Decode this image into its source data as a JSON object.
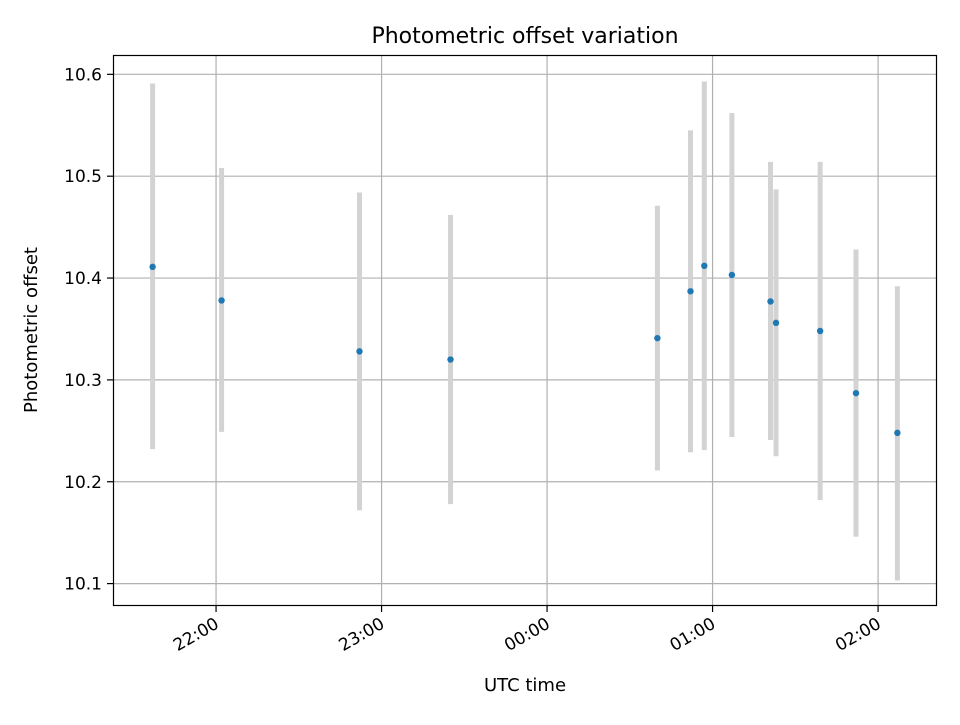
{
  "chart_data": {
    "type": "scatter",
    "title": "Photometric offset variation",
    "xlabel": "UTC time",
    "ylabel": "Photometric offset",
    "x_tick_labels": [
      "22:00",
      "23:00",
      "00:00",
      "01:00",
      "02:00"
    ],
    "x_ticks": [
      "22:00",
      "23:00",
      "00:00",
      "01:00",
      "02:00"
    ],
    "x_range": [
      "21:23",
      "02:21"
    ],
    "y_ticks": [
      10.1,
      10.2,
      10.3,
      10.4,
      10.5,
      10.6
    ],
    "ylim": [
      10.079,
      10.618
    ],
    "grid": true,
    "error_bar_color": "#d3d3d3",
    "point_color": "#1f77b4",
    "series": [
      {
        "points": [
          {
            "x": "21:37",
            "y": 10.411,
            "y_low": 10.232,
            "y_high": 10.591
          },
          {
            "x": "22:02",
            "y": 10.378,
            "y_low": 10.249,
            "y_high": 10.508
          },
          {
            "x": "22:52",
            "y": 10.328,
            "y_low": 10.172,
            "y_high": 10.484
          },
          {
            "x": "23:25",
            "y": 10.32,
            "y_low": 10.178,
            "y_high": 10.462
          },
          {
            "x": "00:40",
            "y": 10.341,
            "y_low": 10.211,
            "y_high": 10.471
          },
          {
            "x": "00:52",
            "y": 10.387,
            "y_low": 10.229,
            "y_high": 10.545
          },
          {
            "x": "00:57",
            "y": 10.412,
            "y_low": 10.231,
            "y_high": 10.593
          },
          {
            "x": "01:07",
            "y": 10.403,
            "y_low": 10.244,
            "y_high": 10.562
          },
          {
            "x": "01:21",
            "y": 10.377,
            "y_low": 10.241,
            "y_high": 10.514
          },
          {
            "x": "01:23",
            "y": 10.356,
            "y_low": 10.225,
            "y_high": 10.487
          },
          {
            "x": "01:39",
            "y": 10.348,
            "y_low": 10.182,
            "y_high": 10.514
          },
          {
            "x": "01:52",
            "y": 10.287,
            "y_low": 10.146,
            "y_high": 10.428
          },
          {
            "x": "02:07",
            "y": 10.248,
            "y_low": 10.103,
            "y_high": 10.392
          }
        ]
      }
    ]
  }
}
